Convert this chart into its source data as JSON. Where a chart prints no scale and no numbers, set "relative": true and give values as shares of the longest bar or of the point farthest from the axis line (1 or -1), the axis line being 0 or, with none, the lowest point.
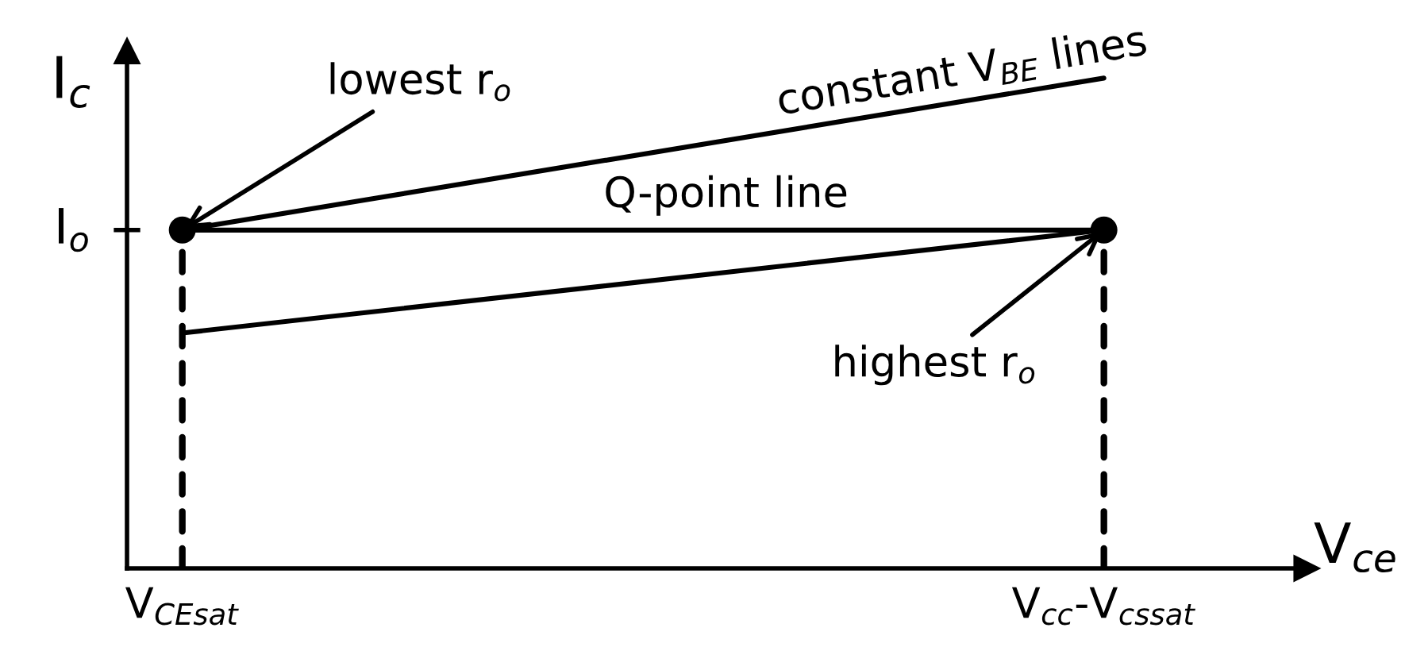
{
  "chart_data": {
    "type": "line",
    "xlabel": "V$_{ce}$",
    "ylabel": "I$_{c}$",
    "relative": true,
    "categories": [
      "V$_{CEsat}$",
      "V$_{cc}$-V$_{cssat}$"
    ],
    "series": [
      {
        "name": "constant V$_{BE}$ lines",
        "values": [
          0.69,
          1
        ],
        "color": "#000000"
      },
      {
        "values": [
          0.48,
          0.69
        ],
        "color": "#000000"
      },
      {
        "name": "Q-point line",
        "values": [
          0.69,
          0.69
        ],
        "color": "#000000"
      },
      {
        "type": "lollipop",
        "values": [
          0.69,
          0.69
        ],
        "color": "#000000",
        "line_style": "dashed",
        "marker": "circle"
      }
    ],
    "annotations": [
      {
        "text": "lowest r$_{o}$",
        "x": "V$_{CEsat}$",
        "y": 0.69
      },
      {
        "text": "highest r$_{o}$",
        "x": "V$_{cc}$-V$_{cssat}$",
        "y": 0.69
      },
      "I$_{o}$"
    ]
  }
}
